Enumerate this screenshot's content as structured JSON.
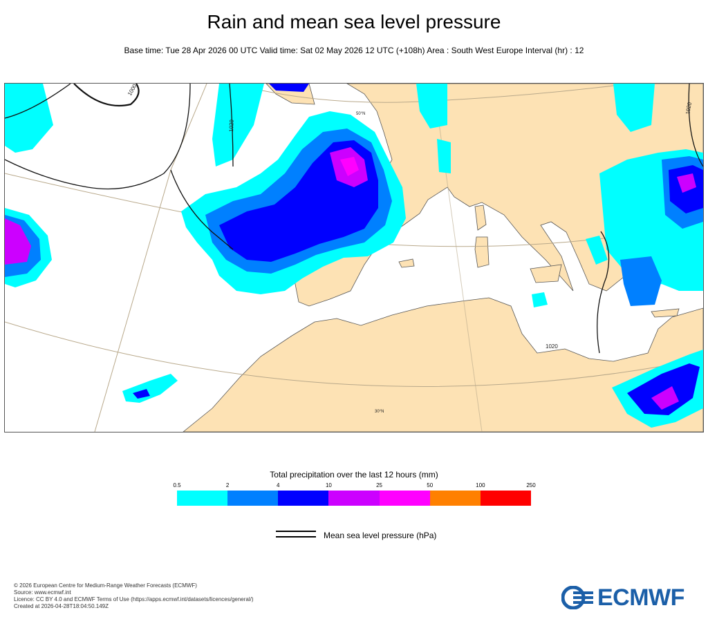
{
  "title": "Rain and mean sea level pressure",
  "subtitle": "Base time: Tue 28 Apr 2026 00 UTC Valid time: Sat 02 May 2026 12 UTC (+108h) Area : South West Europe Interval (hr) : 12",
  "map": {
    "isobar_labels": [
      "1000",
      "1020",
      "1020",
      "1020"
    ],
    "graticule_labels": [
      "50°N",
      "30°N"
    ],
    "colors": {
      "land": "#fde2b4",
      "sea": "#ffffff",
      "coast": "#555555",
      "isobar": "#111111"
    }
  },
  "legend": {
    "title": "Total precipitation over the last 12 hours (mm)",
    "ticks": [
      "0.5",
      "2",
      "4",
      "10",
      "25",
      "50",
      "100",
      "250"
    ],
    "colors": [
      "#00ffff",
      "#0080ff",
      "#0000ff",
      "#cc00ff",
      "#ff00ff",
      "#ff8000",
      "#ff0000"
    ]
  },
  "isobar_key": {
    "label": "Mean sea level pressure (hPa)"
  },
  "footer": {
    "lines": [
      "© 2026 European Centre for Medium-Range Weather Forecasts (ECMWF)",
      "Source: www.ecmwf.int",
      "Licence: CC BY 4.0 and ECMWF Terms of Use (https://apps.ecmwf.int/datasets/licences/general/)",
      "Created at 2026-04-28T18:04:50.149Z"
    ]
  },
  "logo": {
    "text": "ECMWF",
    "color": "#1b5fa8"
  }
}
